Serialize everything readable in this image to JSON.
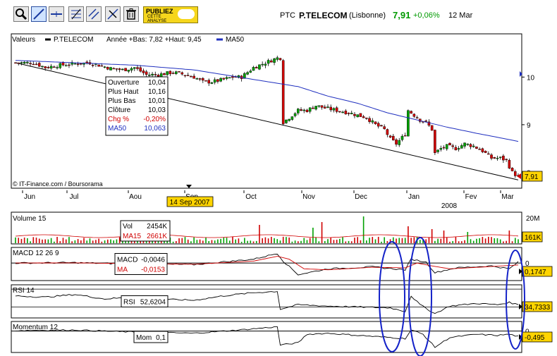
{
  "toolbar": {
    "tools": [
      "zoom-icon",
      "draw-line-icon",
      "horizontal-line-icon",
      "fibonacci-icon",
      "parallel-lines-icon",
      "erase-line-icon",
      "trash-icon"
    ],
    "pub_line1": "PUBLIEZ",
    "pub_line2": "CETTE ANALYSE"
  },
  "header": {
    "ticker": "PTC",
    "name": "P.TELECOM",
    "exchange": "(Lisbonne)",
    "price": "7,91",
    "change": "+0,06%",
    "date": "12 Mar"
  },
  "colors": {
    "up": "#00a000",
    "down": "#d00000",
    "ma": "#1f2fbf",
    "ellipse": "#1422c8",
    "badge": "#ffd400"
  },
  "chart_data": [
    {
      "id": "price",
      "type": "candlestick",
      "legend": [
        "Valeurs",
        "P.TELECOM",
        "Année +Bas: 7,82 +Haut: 9,45",
        "MA50"
      ],
      "copyright": "© IT-Finance.com / Boursorama",
      "yticks": [
        10,
        9,
        8
      ],
      "ytick_labels": [
        "10",
        "9",
        "8"
      ],
      "ylim": [
        7.8,
        10.7
      ],
      "months": [
        "Jun",
        "Jul",
        "Aou",
        "Sep",
        "Oct",
        "Nov",
        "Dec",
        "Jan",
        "Fev",
        "Mar"
      ],
      "year_label": "2008",
      "cursor_date": "14 Sep 2007",
      "last_value": "7,91",
      "trendline": [
        [
          0,
          10.3
        ],
        [
          169,
          7.84
        ]
      ],
      "tooltip": [
        {
          "label": "Ouverture",
          "value": "10,04"
        },
        {
          "label": "Plus Haut",
          "value": "10,16"
        },
        {
          "label": "Plus Bas",
          "value": "10,01"
        },
        {
          "label": "Clôture",
          "value": "10,03"
        },
        {
          "label": "Chg %",
          "value": "-0,20%"
        },
        {
          "label": "MA50",
          "value": "10,063"
        }
      ],
      "close_anchors": [
        [
          0,
          10.3
        ],
        [
          6,
          10.3
        ],
        [
          10,
          10.2
        ],
        [
          15,
          10.25
        ],
        [
          20,
          10.28
        ],
        [
          25,
          10.3
        ],
        [
          28,
          10.25
        ],
        [
          32,
          10.18
        ],
        [
          36,
          10.15
        ],
        [
          40,
          10.2
        ],
        [
          44,
          10.05
        ],
        [
          48,
          10.05
        ],
        [
          53,
          10.1
        ],
        [
          57,
          10.05
        ],
        [
          60,
          10.0
        ],
        [
          63,
          9.9
        ],
        [
          66,
          9.9
        ],
        [
          70,
          9.95
        ],
        [
          73,
          10.0
        ],
        [
          76,
          10.0
        ],
        [
          78,
          10.1
        ],
        [
          80,
          10.2
        ],
        [
          82,
          10.25
        ],
        [
          84,
          10.3
        ],
        [
          86,
          10.35
        ],
        [
          88,
          10.4
        ],
        [
          89,
          10.4
        ],
        [
          90,
          9.05
        ],
        [
          92,
          9.15
        ],
        [
          95,
          9.3
        ],
        [
          98,
          9.3
        ],
        [
          101,
          9.4
        ],
        [
          104,
          9.35
        ],
        [
          108,
          9.3
        ],
        [
          112,
          9.25
        ],
        [
          115,
          9.2
        ],
        [
          118,
          9.15
        ],
        [
          121,
          9.0
        ],
        [
          124,
          8.9
        ],
        [
          126,
          8.7
        ],
        [
          128,
          8.6
        ],
        [
          131,
          8.8
        ],
        [
          132,
          9.3
        ],
        [
          134,
          9.2
        ],
        [
          136,
          9.1
        ],
        [
          138,
          9.05
        ],
        [
          140,
          8.9
        ],
        [
          141,
          8.4
        ],
        [
          143,
          8.5
        ],
        [
          145,
          8.55
        ],
        [
          148,
          8.5
        ],
        [
          151,
          8.6
        ],
        [
          154,
          8.55
        ],
        [
          157,
          8.45
        ],
        [
          160,
          8.3
        ],
        [
          163,
          8.3
        ],
        [
          165,
          8.25
        ],
        [
          167,
          8.0
        ],
        [
          169,
          7.91
        ]
      ],
      "ma_anchors": [
        [
          0,
          10.35
        ],
        [
          20,
          10.3
        ],
        [
          40,
          10.25
        ],
        [
          60,
          10.15
        ],
        [
          75,
          10.0
        ],
        [
          85,
          9.9
        ],
        [
          95,
          9.8
        ],
        [
          105,
          9.6
        ],
        [
          115,
          9.45
        ],
        [
          125,
          9.25
        ],
        [
          135,
          9.1
        ],
        [
          145,
          8.95
        ],
        [
          155,
          8.82
        ],
        [
          165,
          8.7
        ],
        [
          169,
          8.65
        ]
      ]
    },
    {
      "id": "volume",
      "type": "bar",
      "title": "Volume 15",
      "yticks_labels": [
        "20M"
      ],
      "box": [
        {
          "label": "Vol",
          "value": "2454K"
        },
        {
          "label": "MA15",
          "value": "2661K"
        }
      ],
      "last_value": "161K",
      "spikes": [
        [
          82,
          0.65
        ],
        [
          100,
          0.55
        ],
        [
          103,
          0.75
        ],
        [
          117,
          0.95
        ],
        [
          132,
          0.6
        ],
        [
          140,
          0.5
        ],
        [
          144,
          0.45
        ],
        [
          152,
          0.4
        ],
        [
          166,
          0.45
        ]
      ]
    },
    {
      "id": "macd",
      "type": "line",
      "title": "MACD 12 26 9",
      "ytick_labels": [
        "0"
      ],
      "box": [
        {
          "label": "MACD",
          "value": "-0,0046"
        },
        {
          "label": "MA",
          "value": "-0,0153"
        }
      ],
      "last_value": "0,1747",
      "anchors": [
        [
          0,
          0.0
        ],
        [
          20,
          0.02
        ],
        [
          40,
          -0.05
        ],
        [
          60,
          -0.08
        ],
        [
          80,
          0.2
        ],
        [
          88,
          0.5
        ],
        [
          90,
          0.1
        ],
        [
          95,
          -0.6
        ],
        [
          105,
          -0.3
        ],
        [
          120,
          -0.2
        ],
        [
          131,
          -0.35
        ],
        [
          133,
          0.2
        ],
        [
          138,
          0.05
        ],
        [
          141,
          -0.5
        ],
        [
          148,
          -0.25
        ],
        [
          160,
          -0.15
        ],
        [
          166,
          -0.3
        ],
        [
          169,
          0.05
        ]
      ],
      "signal_anchors": [
        [
          0,
          0.0
        ],
        [
          20,
          0.01
        ],
        [
          40,
          -0.03
        ],
        [
          60,
          -0.06
        ],
        [
          80,
          0.1
        ],
        [
          88,
          0.35
        ],
        [
          92,
          0.2
        ],
        [
          97,
          -0.3
        ],
        [
          105,
          -0.35
        ],
        [
          120,
          -0.22
        ],
        [
          131,
          -0.25
        ],
        [
          135,
          0.0
        ],
        [
          140,
          -0.15
        ],
        [
          146,
          -0.3
        ],
        [
          160,
          -0.18
        ],
        [
          169,
          -0.1
        ]
      ]
    },
    {
      "id": "rsi",
      "type": "line",
      "title": "RSI 14",
      "box": [
        {
          "label": "RSI",
          "value": "52,6204"
        }
      ],
      "last_value": "34,7333",
      "anchors": [
        [
          0,
          55
        ],
        [
          10,
          52
        ],
        [
          20,
          58
        ],
        [
          30,
          48
        ],
        [
          40,
          52
        ],
        [
          50,
          47
        ],
        [
          60,
          45
        ],
        [
          70,
          55
        ],
        [
          80,
          62
        ],
        [
          88,
          65
        ],
        [
          89,
          25
        ],
        [
          95,
          35
        ],
        [
          105,
          32
        ],
        [
          115,
          30
        ],
        [
          126,
          28
        ],
        [
          131,
          20
        ],
        [
          133,
          55
        ],
        [
          136,
          35
        ],
        [
          141,
          15
        ],
        [
          146,
          32
        ],
        [
          155,
          38
        ],
        [
          162,
          35
        ],
        [
          166,
          40
        ],
        [
          169,
          35
        ]
      ]
    },
    {
      "id": "momentum",
      "type": "line",
      "title": "Momentum 12",
      "ytick_labels": [
        "0"
      ],
      "box": [
        {
          "label": "Mom",
          "value": "0,1"
        }
      ],
      "last_value": "-0,495",
      "anchors": [
        [
          0,
          0.05
        ],
        [
          20,
          0.1
        ],
        [
          40,
          -0.1
        ],
        [
          60,
          -0.2
        ],
        [
          75,
          0.1
        ],
        [
          88,
          0.4
        ],
        [
          89,
          -1.3
        ],
        [
          95,
          -1.1
        ],
        [
          98,
          -0.3
        ],
        [
          105,
          -0.2
        ],
        [
          115,
          -0.4
        ],
        [
          126,
          -0.6
        ],
        [
          131,
          -0.7
        ],
        [
          133,
          0.1
        ],
        [
          137,
          -0.3
        ],
        [
          141,
          -1.5
        ],
        [
          146,
          -0.6
        ],
        [
          155,
          -0.3
        ],
        [
          162,
          -0.4
        ],
        [
          166,
          -0.3
        ],
        [
          169,
          -0.5
        ]
      ]
    }
  ]
}
